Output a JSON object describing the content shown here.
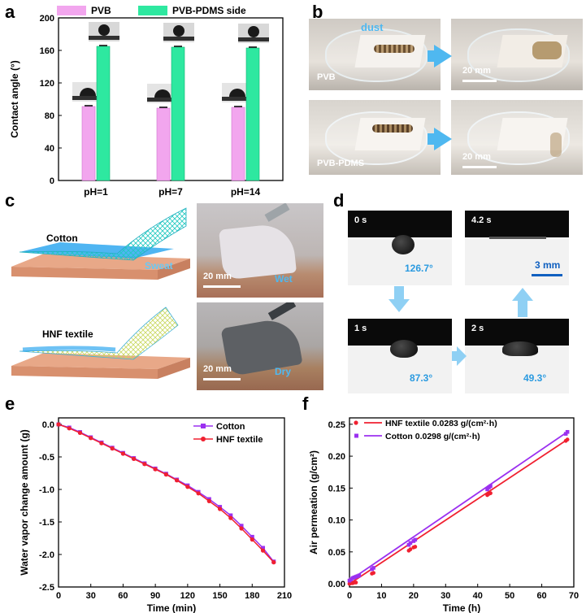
{
  "panels": {
    "a": "a",
    "b": "b",
    "c": "c",
    "d": "d",
    "e": "e",
    "f": "f"
  },
  "colors": {
    "pvb": "#f2a6ee",
    "pvb_pdms": "#2ee8a0",
    "cotton_line": "#9b30f0",
    "hnf_line": "#f02030",
    "arrow_blue": "#4fb8f0",
    "scale_blue": "#1060c0"
  },
  "panel_a": {
    "chart_data": {
      "type": "bar",
      "categories": [
        "pH=1",
        "pH=7",
        "pH=14"
      ],
      "series": [
        {
          "name": "PVB",
          "values": [
            91,
            89,
            90
          ]
        },
        {
          "name": "PVB-PDMS side",
          "values": [
            165,
            164,
            163
          ]
        }
      ],
      "ylabel": "Contact angle (°)",
      "xlabel": "",
      "ylim": [
        0,
        200
      ],
      "yticks": [
        "0",
        "40",
        "80",
        "120",
        "160",
        "200"
      ]
    }
  },
  "panel_b": {
    "dust_label": "dust",
    "row1_label": "PVB",
    "row2_label": "PVB-PDMS",
    "scale1": "20 mm",
    "scale2": "20 mm"
  },
  "panel_c": {
    "cotton_label": "Cotton",
    "sweat_label": "Sweat",
    "hnf_label": "HNF textile",
    "photo1_scale": "20 mm",
    "photo1_state": "Wet",
    "photo2_scale": "20 mm",
    "photo2_state": "Dry"
  },
  "panel_d": {
    "frames": [
      {
        "time": "0 s",
        "angle": "126.7°"
      },
      {
        "time": "4.2 s",
        "angle": ""
      },
      {
        "time": "1 s",
        "angle": "87.3°"
      },
      {
        "time": "2 s",
        "angle": "49.3°"
      }
    ],
    "scale": "3 mm"
  },
  "panel_e": {
    "chart_data": {
      "type": "line",
      "title": "",
      "xlabel": "Time (min)",
      "ylabel": "Water vapor change amount (g)",
      "xlim": [
        0,
        210
      ],
      "ylim": [
        -2.5,
        0.1
      ],
      "xticks": [
        "0",
        "30",
        "60",
        "90",
        "120",
        "150",
        "180",
        "210"
      ],
      "yticks": [
        "0.0",
        "-0.5",
        "-1.0",
        "-1.5",
        "-2.0",
        "-2.5"
      ],
      "x": [
        0,
        10,
        20,
        30,
        40,
        50,
        60,
        70,
        80,
        90,
        100,
        110,
        120,
        130,
        140,
        150,
        160,
        170,
        180,
        190,
        200
      ],
      "series": [
        {
          "name": "Cotton",
          "values": [
            0,
            -0.05,
            -0.12,
            -0.2,
            -0.28,
            -0.36,
            -0.44,
            -0.52,
            -0.6,
            -0.68,
            -0.76,
            -0.85,
            -0.94,
            -1.04,
            -1.15,
            -1.27,
            -1.4,
            -1.56,
            -1.73,
            -1.9,
            -2.11
          ]
        },
        {
          "name": "HNF textile",
          "values": [
            0,
            -0.06,
            -0.13,
            -0.21,
            -0.29,
            -0.37,
            -0.45,
            -0.53,
            -0.61,
            -0.69,
            -0.77,
            -0.86,
            -0.96,
            -1.06,
            -1.18,
            -1.3,
            -1.44,
            -1.6,
            -1.77,
            -1.94,
            -2.12
          ]
        }
      ]
    }
  },
  "panel_f": {
    "chart_data": {
      "type": "scatter",
      "title": "",
      "xlabel": "Time (h)",
      "ylabel": "Air permeation (g/cm²)",
      "xlim": [
        0,
        70
      ],
      "ylim": [
        -0.005,
        0.26
      ],
      "xticks": [
        "0",
        "10",
        "20",
        "30",
        "40",
        "50",
        "60",
        "70"
      ],
      "yticks": [
        "0.00",
        "0.05",
        "0.10",
        "0.15",
        "0.20",
        "0.25"
      ],
      "series": [
        {
          "name": "HNF textile",
          "slope": 0.0283,
          "legend": "HNF textile 0.0283 g/(cm²·h)",
          "x": [
            0,
            0.5,
            1,
            1.5,
            2,
            7,
            7.5,
            18.5,
            19,
            20,
            20.5,
            43,
            43.5,
            44,
            67.5,
            68
          ],
          "y": [
            0.0,
            0.001,
            0.001,
            0.002,
            0.002,
            0.016,
            0.017,
            0.052,
            0.054,
            0.057,
            0.058,
            0.139,
            0.141,
            0.142,
            0.224,
            0.226
          ]
        },
        {
          "name": "Cotton",
          "slope": 0.0298,
          "legend": "Cotton 0.0298 g/(cm²·h)",
          "x": [
            0,
            0.5,
            1,
            1.5,
            2,
            2.5,
            3,
            7,
            7.5,
            18.5,
            19,
            20,
            20.5,
            43,
            43.5,
            44,
            67.5,
            68
          ],
          "y": [
            0.005,
            0.007,
            0.009,
            0.01,
            0.011,
            0.012,
            0.013,
            0.023,
            0.025,
            0.061,
            0.064,
            0.067,
            0.069,
            0.148,
            0.151,
            0.153,
            0.235,
            0.238
          ]
        }
      ]
    }
  }
}
